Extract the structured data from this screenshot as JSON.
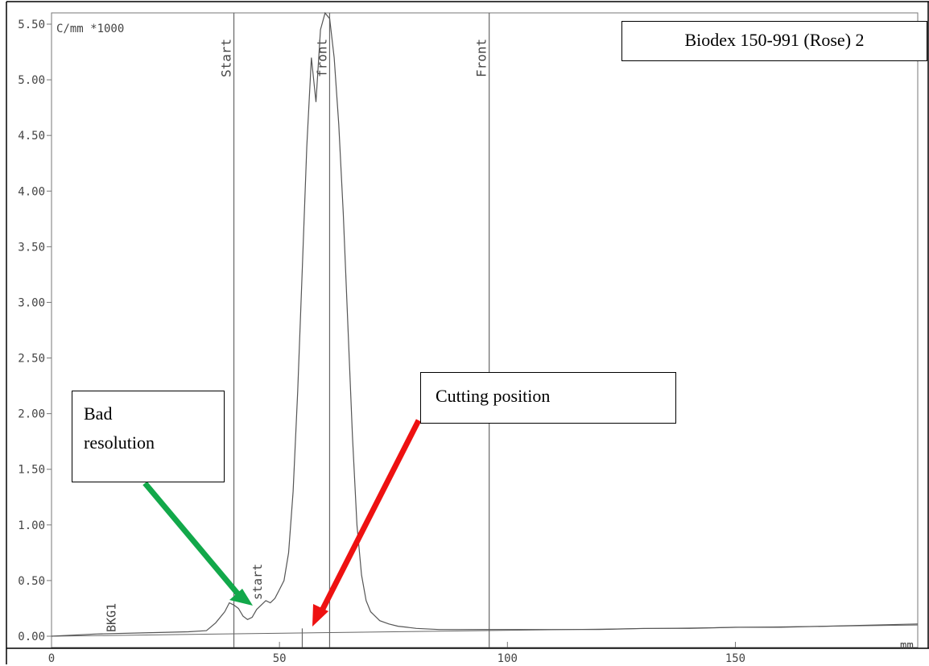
{
  "chart_data": {
    "type": "line",
    "title": "Biodex 150-991 (Rose) 2",
    "ylabel": "C/mm *1000",
    "xlabel": "mm",
    "xlim": [
      0,
      190
    ],
    "ylim": [
      0,
      5.5
    ],
    "x_ticks": [
      0,
      50,
      100,
      150
    ],
    "x_tick_labels": [
      "0",
      "50",
      "100",
      "150"
    ],
    "y_ticks": [
      0,
      0.5,
      1.0,
      1.5,
      2.0,
      2.5,
      3.0,
      3.5,
      4.0,
      4.5,
      5.0,
      5.5
    ],
    "y_tick_labels": [
      "0.00",
      "0.50",
      "1.00",
      "1.50",
      "2.00",
      "2.50",
      "3.00",
      "3.50",
      "4.00",
      "4.50",
      "5.00",
      "5.50"
    ],
    "grid": false,
    "series": [
      {
        "x": [
          0,
          10,
          20,
          30,
          34,
          36,
          38,
          39,
          40,
          41,
          42,
          43,
          44,
          45,
          46,
          47,
          48,
          49,
          50,
          51,
          52,
          53,
          54,
          55,
          56,
          57,
          58,
          59,
          60,
          61,
          62,
          63,
          64,
          65,
          66,
          67,
          68,
          69,
          70,
          72,
          74,
          76,
          78,
          80,
          85,
          90,
          95,
          100,
          110,
          120,
          130,
          140,
          150,
          160,
          170,
          180,
          190
        ],
        "y": [
          0.0,
          0.02,
          0.03,
          0.04,
          0.05,
          0.12,
          0.22,
          0.3,
          0.28,
          0.25,
          0.18,
          0.15,
          0.17,
          0.24,
          0.28,
          0.32,
          0.3,
          0.34,
          0.42,
          0.5,
          0.75,
          1.3,
          2.2,
          3.3,
          4.4,
          5.2,
          4.8,
          5.45,
          5.6,
          5.55,
          5.2,
          4.6,
          3.8,
          2.8,
          1.8,
          1.0,
          0.55,
          0.32,
          0.22,
          0.14,
          0.11,
          0.09,
          0.08,
          0.07,
          0.06,
          0.06,
          0.06,
          0.06,
          0.06,
          0.06,
          0.07,
          0.07,
          0.08,
          0.08,
          0.09,
          0.1,
          0.11
        ]
      }
    ],
    "baseline": {
      "x": [
        0,
        190
      ],
      "y": [
        0,
        0.1
      ]
    },
    "markers": [
      {
        "x": 40,
        "label": "Start",
        "height": 5.5
      },
      {
        "x": 55,
        "label": "",
        "height": 0.07
      },
      {
        "x": 61,
        "label": "front",
        "height": 5.5
      },
      {
        "x": 96,
        "label": "Front",
        "height": 5.5
      }
    ],
    "annotations": [
      {
        "x": 45,
        "label": "start"
      },
      {
        "x": 13,
        "label": "BKG1"
      }
    ]
  },
  "callouts": {
    "bad_resolution_line1": "Bad",
    "bad_resolution_line2": "resolution",
    "cutting_position": "Cutting position"
  },
  "arrow_colors": {
    "bad_resolution": "#12a84a",
    "cutting_position": "#ee1111"
  }
}
